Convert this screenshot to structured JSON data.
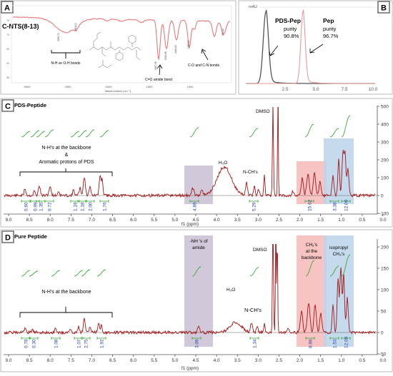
{
  "panels": {
    "a": {
      "letter": "A",
      "label": "C-NTS(8-13)",
      "x_axis_title": "Wavenumbers (cm⁻¹)",
      "x_ticks": [
        "3000",
        "2500",
        "2000",
        "1500",
        "1000"
      ],
      "y_ticks": [
        "75",
        "70",
        "65",
        "60",
        "55"
      ],
      "annotations": [
        {
          "text": "N-H ve O-H bonds"
        },
        {
          "text": "C=O amide bond"
        },
        {
          "text": "C-O and C-N bonds"
        }
      ],
      "peak_labels": [
        "3296.70",
        "2961.19",
        "1637.38",
        "1515.08",
        "1446.00",
        "1065.11",
        "650.02"
      ]
    },
    "b": {
      "letter": "B",
      "unit_label": "mAU",
      "x_ticks": [
        "2.5",
        "5.0",
        "7.5",
        "10.0"
      ],
      "traces": [
        {
          "name": "PDS-Pep",
          "purity_label": "purity",
          "purity": "90.8%",
          "color": "#555555"
        },
        {
          "name": "Pep",
          "purity_label": "purity",
          "purity": "96.7%",
          "color": "#e89a9a"
        }
      ]
    },
    "c": {
      "letter": "C",
      "title": "PDS-Peptide",
      "peak_labels": {
        "dmso": "DMSO",
        "water": "H₂O",
        "nch": "N-CH's"
      },
      "bracket_label_lines": [
        "N-H's at the backbone",
        "&",
        "Aromatic protons of PDS"
      ],
      "integrals": [
        "0.60",
        "0.99",
        "1.35",
        "0.72",
        "1.19",
        "1.18",
        "2.00",
        "1.76",
        "4.89",
        "5.29",
        "15.62",
        "3.38",
        "12.00"
      ],
      "y_ticks": [
        "500",
        "400",
        "300",
        "200",
        "100",
        "0",
        "-100"
      ]
    },
    "d": {
      "letter": "D",
      "title": "Pure Peptide",
      "peak_labels": {
        "dmso": "DMSO",
        "water": "H₂O",
        "nch": "N-CH's"
      },
      "bracket_label_lines": [
        "N-H's at the backbone"
      ],
      "band_labels": [
        {
          "lines": [
            "-NH 's of",
            "amide"
          ]
        },
        {
          "lines": [
            "CH₂'s",
            "at the",
            "backbone"
          ]
        },
        {
          "lines": [
            "isopropyl",
            "CH₃'s"
          ]
        }
      ],
      "integrals": [
        "0.78",
        "0.30",
        "1.08",
        "1.07",
        "2.75",
        "1.92",
        "3.09",
        "1.34",
        "8.96",
        "1.53",
        "12.00"
      ],
      "y_ticks": [
        "200",
        "150",
        "100",
        "50",
        "0",
        "-50"
      ]
    },
    "nmr_axis": {
      "ticks": [
        "9.0",
        "8.5",
        "8.0",
        "7.5",
        "7.0",
        "6.5",
        "6.0",
        "5.5",
        "5.0",
        "4.5",
        "4.0",
        "3.5",
        "3.0",
        "2.5",
        "2.0",
        "1.5",
        "1.0",
        "0.5",
        "0.0"
      ],
      "title": "f1 (ppm)"
    }
  },
  "colors": {
    "ir_trace": "#e87a7a",
    "nmr_trace": "#a01818",
    "integral_curve": "#3aaa3a",
    "integral_value": "#1f3fa8",
    "purple_band": "#c9bfd2",
    "red_band": "#f6b8b8",
    "blue_band": "#bcd3ea",
    "panel_border": "#bbbbbb",
    "letter_box": "#6b6b6b"
  }
}
